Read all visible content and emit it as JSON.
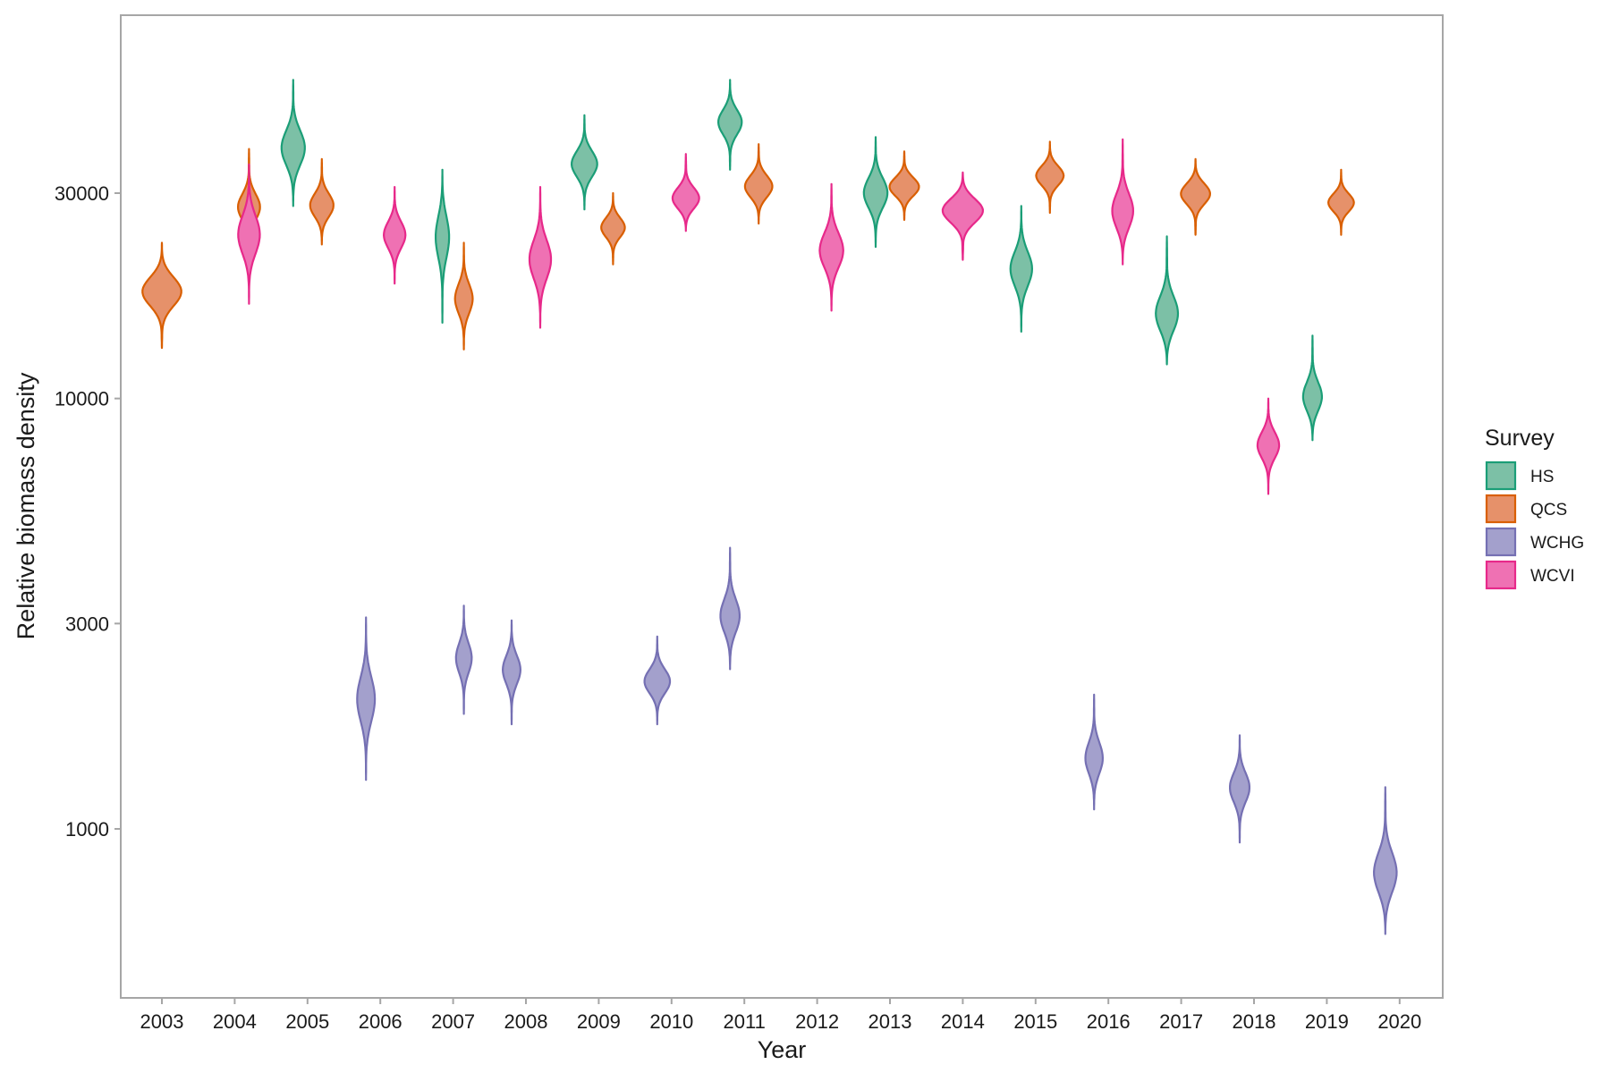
{
  "chart_data": {
    "type": "violin",
    "title": "",
    "xlabel": "Year",
    "ylabel": "Relative biomass density",
    "y_scale": "log",
    "ylim": [
      480,
      100000
    ],
    "yticks": [
      1000,
      3000,
      10000,
      30000
    ],
    "ytick_labels": [
      "1000",
      "3000",
      "10000",
      "30000"
    ],
    "grid": false,
    "legend_position": "right",
    "legend_title": "Survey",
    "categories": [
      "2003",
      "2004",
      "2005",
      "2006",
      "2007",
      "2008",
      "2009",
      "2010",
      "2011",
      "2012",
      "2013",
      "2014",
      "2015",
      "2016",
      "2017",
      "2018",
      "2019",
      "2020"
    ],
    "surveys": [
      {
        "name": "HS",
        "fill": "#7cc0a6",
        "stroke": "#1b9e77"
      },
      {
        "name": "QCS",
        "fill": "#e6916a",
        "stroke": "#d95f02"
      },
      {
        "name": "WCHG",
        "fill": "#a3a0cc",
        "stroke": "#7570b3"
      },
      {
        "name": "WCVI",
        "fill": "#ef71b3",
        "stroke": "#e7298a"
      }
    ],
    "violins": [
      {
        "year": "2003",
        "survey": "QCS",
        "min": 13100,
        "median": 17800,
        "max": 23000,
        "width": 1.0
      },
      {
        "year": "2004",
        "survey": "QCS",
        "min": 22700,
        "median": 27500,
        "max": 38000,
        "width": 0.6
      },
      {
        "year": "2004",
        "survey": "WCVI",
        "min": 16600,
        "median": 24000,
        "max": 35000,
        "width": 0.55
      },
      {
        "year": "2005",
        "survey": "HS",
        "min": 28000,
        "median": 38000,
        "max": 55000,
        "width": 0.6
      },
      {
        "year": "2005",
        "survey": "QCS",
        "min": 22800,
        "median": 28000,
        "max": 36000,
        "width": 0.6
      },
      {
        "year": "2006",
        "survey": "WCHG",
        "min": 1300,
        "median": 2000,
        "max": 3100,
        "width": 0.45
      },
      {
        "year": "2006",
        "survey": "WCVI",
        "min": 18500,
        "median": 24000,
        "max": 31000,
        "width": 0.55
      },
      {
        "year": "2007",
        "survey": "HS",
        "min": 15000,
        "median": 24000,
        "max": 34000,
        "width": 0.35
      },
      {
        "year": "2007",
        "survey": "QCS",
        "min": 13000,
        "median": 17000,
        "max": 23000,
        "width": 0.45
      },
      {
        "year": "2007",
        "survey": "WCHG",
        "min": 1850,
        "median": 2500,
        "max": 3300,
        "width": 0.4
      },
      {
        "year": "2008",
        "survey": "WCHG",
        "min": 1750,
        "median": 2350,
        "max": 3050,
        "width": 0.45
      },
      {
        "year": "2008",
        "survey": "WCVI",
        "min": 14600,
        "median": 21000,
        "max": 31000,
        "width": 0.55
      },
      {
        "year": "2009",
        "survey": "HS",
        "min": 27500,
        "median": 35000,
        "max": 45500,
        "width": 0.65
      },
      {
        "year": "2009",
        "survey": "QCS",
        "min": 20500,
        "median": 25000,
        "max": 30000,
        "width": 0.6
      },
      {
        "year": "2010",
        "survey": "WCHG",
        "min": 1750,
        "median": 2200,
        "max": 2800,
        "width": 0.65
      },
      {
        "year": "2010",
        "survey": "WCVI",
        "min": 24500,
        "median": 29000,
        "max": 37000,
        "width": 0.7
      },
      {
        "year": "2011",
        "survey": "HS",
        "min": 34000,
        "median": 44000,
        "max": 55000,
        "width": 0.6
      },
      {
        "year": "2011",
        "survey": "QCS",
        "min": 25500,
        "median": 31000,
        "max": 39000,
        "width": 0.7
      },
      {
        "year": "2011",
        "survey": "WCHG",
        "min": 2350,
        "median": 3100,
        "max": 4500,
        "width": 0.5
      },
      {
        "year": "2012",
        "survey": "WCVI",
        "min": 16000,
        "median": 22000,
        "max": 31500,
        "width": 0.6
      },
      {
        "year": "2013",
        "survey": "HS",
        "min": 22500,
        "median": 30000,
        "max": 40500,
        "width": 0.6
      },
      {
        "year": "2013",
        "survey": "QCS",
        "min": 26000,
        "median": 31000,
        "max": 37500,
        "width": 0.75
      },
      {
        "year": "2014",
        "survey": "WCVI",
        "min": 21000,
        "median": 27500,
        "max": 33500,
        "width": 1.05
      },
      {
        "year": "2015",
        "survey": "HS",
        "min": 14300,
        "median": 20000,
        "max": 28000,
        "width": 0.55
      },
      {
        "year": "2015",
        "survey": "QCS",
        "min": 27000,
        "median": 33000,
        "max": 39500,
        "width": 0.7
      },
      {
        "year": "2016",
        "survey": "WCHG",
        "min": 1110,
        "median": 1450,
        "max": 2050,
        "width": 0.45
      },
      {
        "year": "2016",
        "survey": "WCVI",
        "min": 20500,
        "median": 27000,
        "max": 40000,
        "width": 0.55
      },
      {
        "year": "2017",
        "survey": "HS",
        "min": 12000,
        "median": 15500,
        "max": 23800,
        "width": 0.6
      },
      {
        "year": "2017",
        "survey": "QCS",
        "min": 24000,
        "median": 30000,
        "max": 36000,
        "width": 0.75
      },
      {
        "year": "2018",
        "survey": "WCHG",
        "min": 930,
        "median": 1250,
        "max": 1650,
        "width": 0.5
      },
      {
        "year": "2018",
        "survey": "WCVI",
        "min": 6000,
        "median": 7800,
        "max": 10000,
        "width": 0.55
      },
      {
        "year": "2019",
        "survey": "HS",
        "min": 8000,
        "median": 10000,
        "max": 14000,
        "width": 0.5
      },
      {
        "year": "2019",
        "survey": "QCS",
        "min": 24000,
        "median": 28500,
        "max": 34000,
        "width": 0.65
      },
      {
        "year": "2020",
        "survey": "WCHG",
        "min": 570,
        "median": 780,
        "max": 1250,
        "width": 0.6
      }
    ]
  }
}
